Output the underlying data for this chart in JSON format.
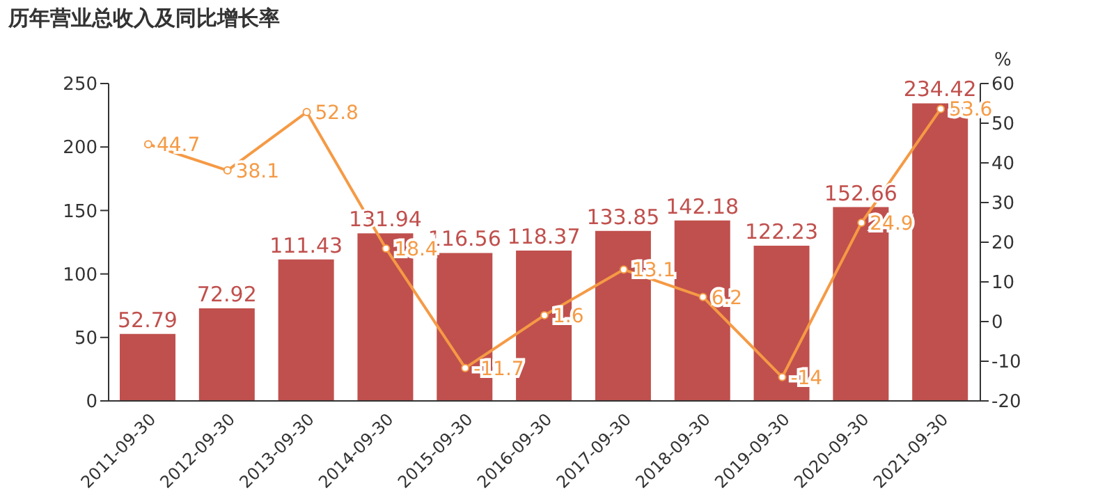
{
  "chart_data": {
    "type": "bar",
    "title": "历年营业总收入及同比增长率",
    "y2label": "%",
    "categories": [
      "2011-09-30",
      "2012-09-30",
      "2013-09-30",
      "2014-09-30",
      "2015-09-30",
      "2016-09-30",
      "2017-09-30",
      "2018-09-30",
      "2019-09-30",
      "2020-09-30",
      "2021-09-30"
    ],
    "series": [
      {
        "color": "#c0504d",
        "values": [
          52.79,
          72.92,
          111.43,
          131.94,
          116.56,
          118.37,
          133.85,
          142.18,
          122.23,
          152.66,
          234.42
        ]
      },
      {
        "type": "line",
        "axis": "y2",
        "color": "#f59a45",
        "values": [
          44.7,
          38.1,
          52.8,
          18.4,
          -11.7,
          1.6,
          13.1,
          6.2,
          -14,
          24.9,
          53.6
        ]
      }
    ],
    "ylim": [
      0,
      250
    ],
    "yticks": [
      0,
      50,
      100,
      150,
      200,
      250
    ],
    "y2lim": [
      -20,
      60
    ],
    "y2ticks": [
      -20,
      -10,
      0,
      10,
      20,
      30,
      40,
      50,
      60
    ],
    "data_labels": true,
    "grid": false,
    "legend": false,
    "marker": "circle",
    "line_style": "solid"
  }
}
